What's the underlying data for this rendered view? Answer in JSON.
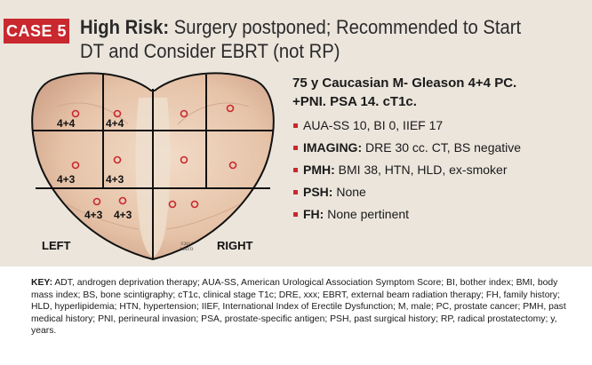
{
  "badge": "CASE 5",
  "headline": {
    "risk": "High Risk:",
    "rest": " Surgery postponed; Recommended to Start DT and Consider EBRT (not RP)"
  },
  "diagram": {
    "left_label": "LEFT",
    "right_label": "RIGHT",
    "copyright_1": "©2014",
    "copyright_2": "MAYO",
    "gleason": [
      "4+4",
      "4+4",
      "4+3",
      "4+3",
      "4+3",
      "4+3"
    ],
    "marker_color": "#c8282e"
  },
  "patient": {
    "line1": "75 y Caucasian M- Gleason 4+4 PC.",
    "line2": "+PNI. PSA 14. cT1c."
  },
  "bullets": [
    {
      "label": "",
      "value": "AUA-SS 10, BI 0, IIEF 17"
    },
    {
      "label": "IMAGING:",
      "value": " DRE 30 cc. CT, BS negative"
    },
    {
      "label": "PMH:",
      "value": " BMI 38, HTN, HLD, ex-smoker"
    },
    {
      "label": "PSH:",
      "value": " None"
    },
    {
      "label": "FH:",
      "value": " None pertinent"
    }
  ],
  "key": {
    "label": "KEY:",
    "text": " ADT, androgen deprivation therapy; AUA-SS, American Urological Association Symptom Score; BI, bother index; BMI, body mass index; BS, bone scintigraphy; cT1c, clinical stage T1c; DRE, xxx; EBRT, external beam radiation therapy; FH, family history; HLD, hyperlipidemia; HTN, hypertension; IIEF, International Index of Erectile Dysfunction; M, male; PC, prostate cancer; PMH, past medical history; PNI, perineural invasion; PSA, prostate-specific antigen; PSH, past surgical history; RP, radical prostatectomy; y, years."
  },
  "colors": {
    "accent": "#c8282e",
    "background": "#ebe5dc",
    "key_background": "#ffffff"
  }
}
